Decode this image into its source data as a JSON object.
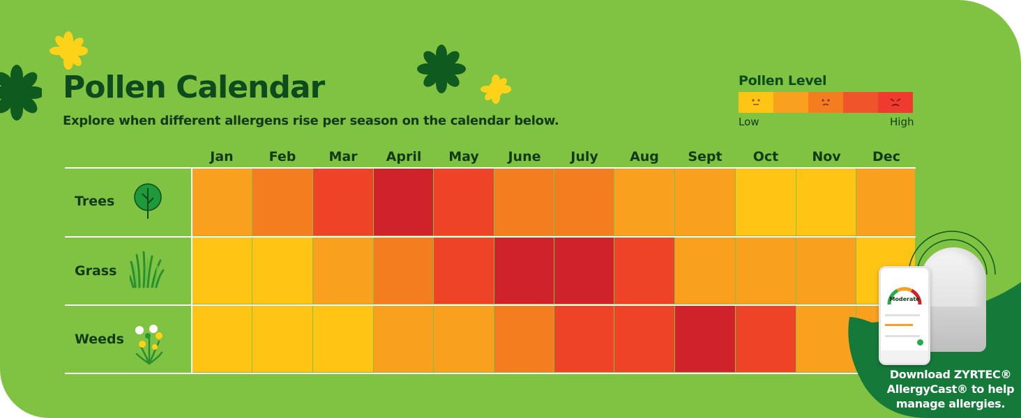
{
  "title": "Pollen Calendar",
  "subtitle": "Explore when different allergens rise per season on the calendar below.",
  "legend": {
    "title": "Pollen Level",
    "low_label": "Low",
    "high_label": "High",
    "colors": [
      "#ffc414",
      "#f9a11f",
      "#f47d20",
      "#f0542b",
      "#ee3a2f"
    ]
  },
  "chart_data": {
    "type": "heatmap",
    "categories": [
      "Jan",
      "Feb",
      "Mar",
      "April",
      "May",
      "June",
      "July",
      "Aug",
      "Sept",
      "Oct",
      "Nov",
      "Dec"
    ],
    "scale": [
      "#ffc414",
      "#f9a11f",
      "#f47d20",
      "#ee4327",
      "#d0222a"
    ],
    "series": [
      {
        "name": "Trees",
        "icon": "tree-icon",
        "values": [
          2,
          3,
          4,
          5,
          4,
          3,
          3,
          2,
          2,
          1,
          1,
          2
        ]
      },
      {
        "name": "Grass",
        "icon": "grass-icon",
        "values": [
          1,
          1,
          2,
          3,
          4,
          5,
          5,
          4,
          2,
          2,
          2,
          1
        ]
      },
      {
        "name": "Weeds",
        "icon": "weeds-icon",
        "values": [
          1,
          1,
          1,
          2,
          2,
          3,
          4,
          4,
          5,
          4,
          2,
          2
        ]
      }
    ]
  },
  "promo": {
    "line1": "Download ZYRTEC®",
    "line2": "AllergyCast® to help",
    "line3": "manage allergies.",
    "phone_status": "Moderate"
  }
}
